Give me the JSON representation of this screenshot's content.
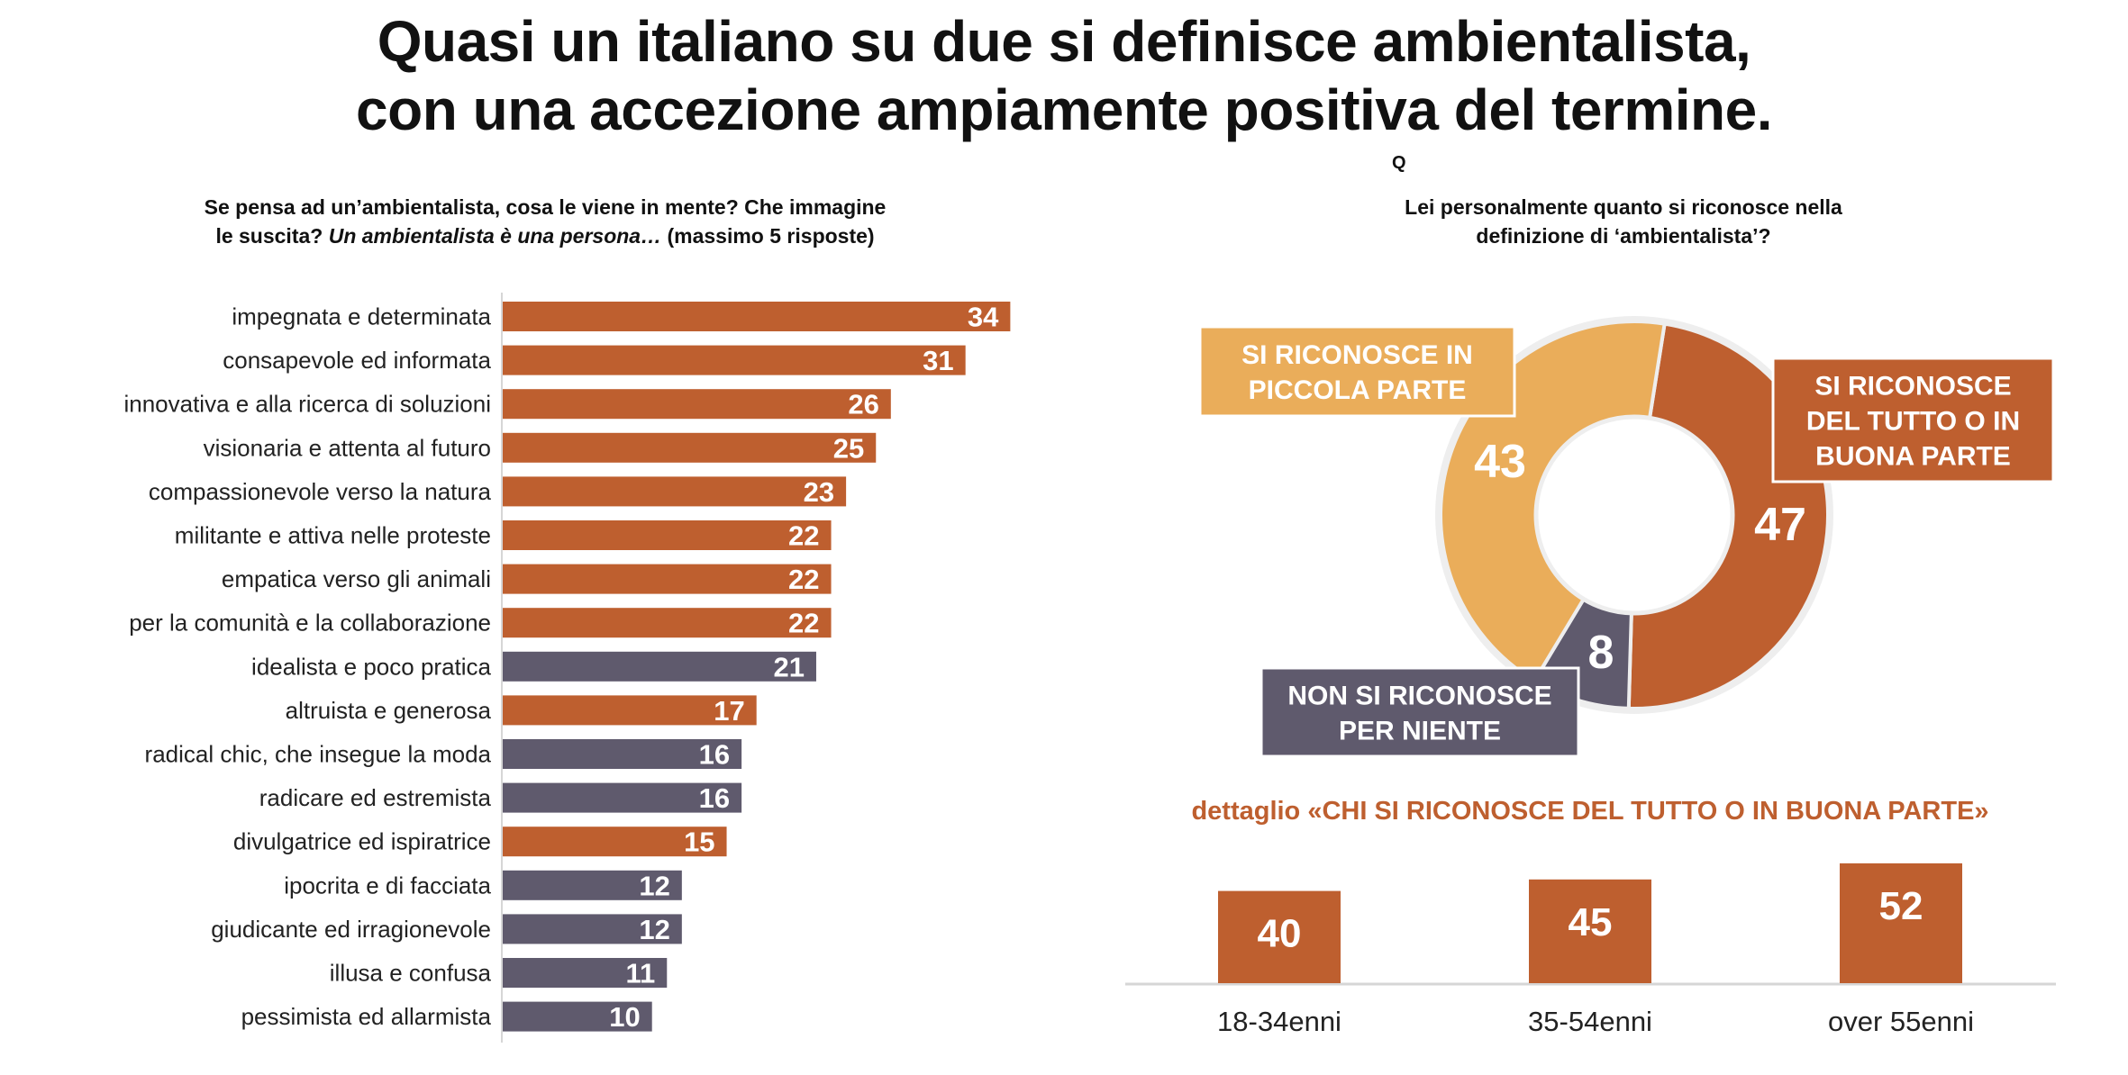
{
  "title": {
    "line1": "Quasi un italiano su due si definisce ambientalista,",
    "line2": "con una accezione ampiamente positiva del termine."
  },
  "q_marker": "Q",
  "colors": {
    "orange": "#BE5F2F",
    "gray": "#5F5A6D",
    "light_orange": "#EAAD5A",
    "white": "#FFFFFF"
  },
  "chart_data": [
    {
      "type": "bar",
      "orientation": "horizontal",
      "question": {
        "line1": "Se pensa ad un’ambientalista, cosa le viene in mente? Che immagine",
        "line2_pre": "le suscita? ",
        "line2_italic": "Un ambientalista è una persona…",
        "line2_post": " (massimo 5 risposte)"
      },
      "categories": [
        "impegnata e determinata",
        "consapevole ed informata",
        "innovativa e alla ricerca di soluzioni",
        "visionaria e attenta al futuro",
        "compassionevole verso la natura",
        "militante e attiva nelle proteste",
        "empatica verso gli animali",
        "per la comunità e la collaborazione",
        "idealista e poco pratica",
        "altruista e generosa",
        "radical chic, che insegue la moda",
        "radicare ed estremista",
        "divulgatrice ed ispiratrice",
        "ipocrita e di facciata",
        "giudicante ed irragionevole",
        "illusa e confusa",
        "pessimista ed allarmista"
      ],
      "values": [
        34,
        31,
        26,
        25,
        23,
        22,
        22,
        22,
        21,
        17,
        16,
        16,
        15,
        12,
        12,
        11,
        10
      ],
      "tone": [
        "positive",
        "positive",
        "positive",
        "positive",
        "positive",
        "positive",
        "positive",
        "positive",
        "negative",
        "positive",
        "negative",
        "negative",
        "positive",
        "negative",
        "negative",
        "negative",
        "negative"
      ],
      "xlim": [
        0,
        34
      ]
    },
    {
      "type": "pie",
      "donut": true,
      "question": {
        "line1": "Lei personalmente quanto si riconosce nella",
        "line2": "definizione di ‘ambientalista’?"
      },
      "slices": [
        {
          "label": [
            "SI RICONOSCE",
            "DEL TUTTO O IN",
            "BUONA PARTE"
          ],
          "value": 47,
          "color": "#BE5F2F"
        },
        {
          "label": [
            "NON SI RICONOSCE",
            "PER NIENTE"
          ],
          "value": 8,
          "color": "#5F5A6D"
        },
        {
          "label": [
            "SI RICONOSCE IN",
            "PICCOLA PARTE"
          ],
          "value": 43,
          "color": "#EAAD5A"
        }
      ]
    },
    {
      "type": "bar",
      "title": "dettaglio «CHI SI RICONOSCE DEL TUTTO O IN BUONA PARTE»",
      "categories": [
        "18-34enni",
        "35-54enni",
        "over 55enni"
      ],
      "values": [
        40,
        45,
        52
      ],
      "color": "#BE5F2F"
    }
  ]
}
